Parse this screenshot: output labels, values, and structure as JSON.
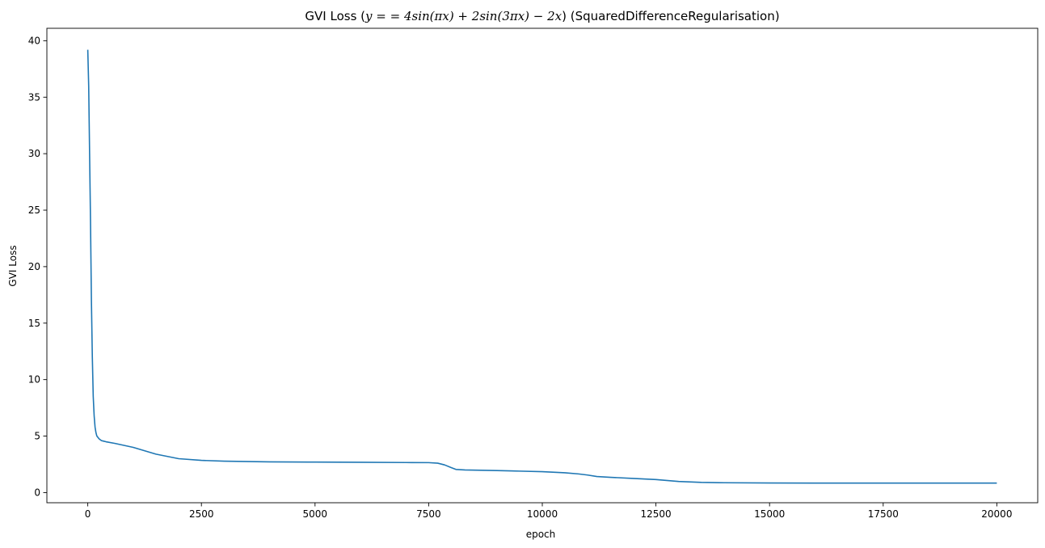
{
  "chart_data": {
    "type": "line",
    "title": {
      "prefix": "GVI Loss (",
      "math": "y = = 4sin(πx) + 2sin(3πx) − 2x",
      "suffix": ") (SquaredDifferenceRegularisation)"
    },
    "xlabel": "epoch",
    "ylabel": "GVI Loss",
    "xlim": [
      -900,
      20900
    ],
    "ylim": [
      -0.9,
      41.1
    ],
    "xticks": [
      0,
      2500,
      5000,
      7500,
      10000,
      12500,
      15000,
      17500,
      20000
    ],
    "xtick_labels": [
      "0",
      "2500",
      "5000",
      "7500",
      "10000",
      "12500",
      "15000",
      "17500",
      "20000"
    ],
    "yticks": [
      0,
      5,
      10,
      15,
      20,
      25,
      30,
      35,
      40
    ],
    "ytick_labels": [
      "0",
      "5",
      "10",
      "15",
      "20",
      "25",
      "30",
      "35",
      "40"
    ],
    "grid": false,
    "series": [
      {
        "color": "#1f77b4",
        "x": [
          0,
          20,
          40,
          60,
          80,
          100,
          120,
          140,
          160,
          180,
          200,
          250,
          300,
          400,
          600,
          1000,
          1500,
          2000,
          2500,
          3000,
          4000,
          5000,
          6000,
          7000,
          7500,
          7700,
          7850,
          8000,
          8100,
          8300,
          9000,
          9500,
          10000,
          10500,
          10800,
          11000,
          11200,
          11500,
          12000,
          12500,
          13000,
          13500,
          14000,
          15000,
          16000,
          17000,
          18000,
          19000,
          20000
        ],
        "y": [
          39.2,
          36.0,
          30.0,
          24.0,
          17.0,
          12.0,
          8.5,
          6.8,
          5.8,
          5.3,
          5.0,
          4.75,
          4.6,
          4.5,
          4.35,
          4.0,
          3.4,
          3.0,
          2.85,
          2.78,
          2.72,
          2.7,
          2.68,
          2.66,
          2.65,
          2.6,
          2.45,
          2.2,
          2.05,
          2.0,
          1.95,
          1.9,
          1.85,
          1.75,
          1.65,
          1.55,
          1.42,
          1.35,
          1.25,
          1.15,
          0.98,
          0.9,
          0.87,
          0.85,
          0.84,
          0.84,
          0.84,
          0.84,
          0.84
        ]
      }
    ]
  }
}
